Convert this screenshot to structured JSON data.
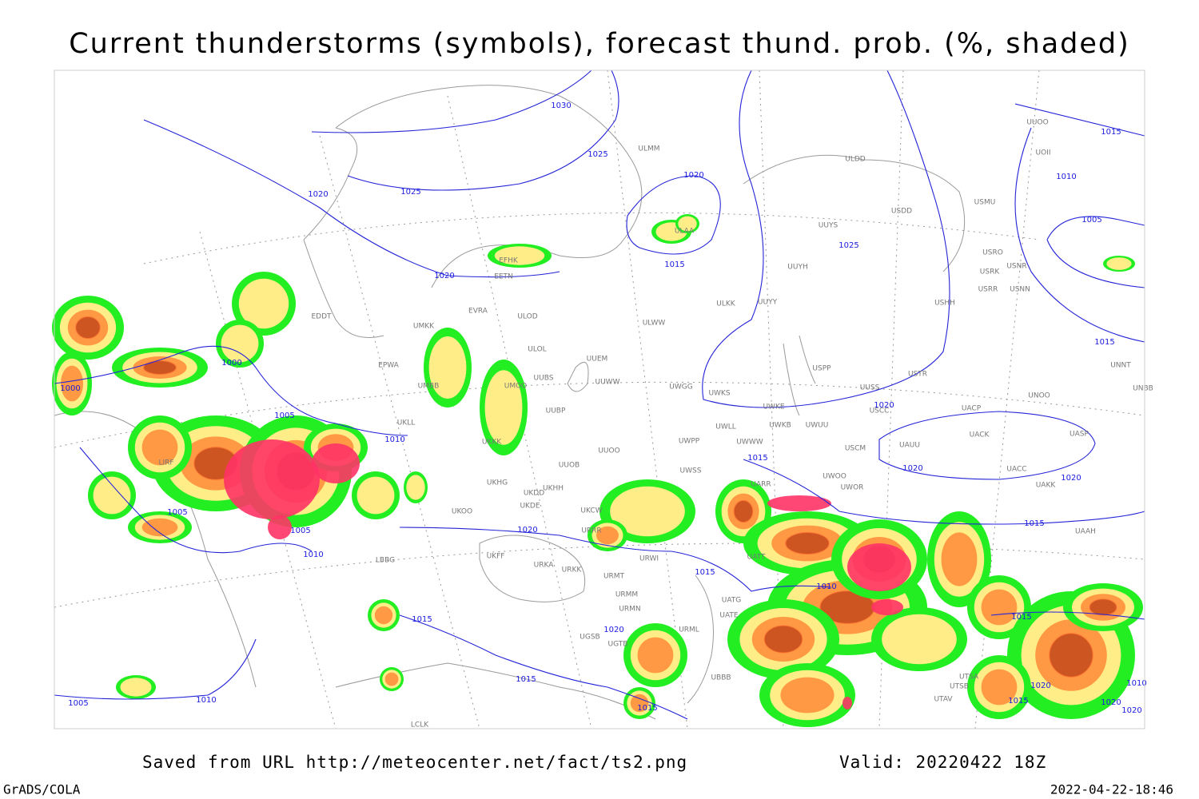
{
  "header": {
    "title": "Current thunderstorms (symbols), forecast thund. prob. (%, shaded)"
  },
  "map": {
    "stations": [
      "EFHK",
      "EETN",
      "EVRA",
      "ULOD",
      "EDDT",
      "UMKK",
      "ULOL",
      "EPWA",
      "UMOO",
      "UUBS",
      "UMBB",
      "UUBP",
      "UKLL",
      "UKKK",
      "UUOB",
      "UKHG",
      "UKDD",
      "UKHH",
      "UKOO",
      "UKDE",
      "UKCW",
      "URRR",
      "UKFF",
      "URKA",
      "URKK",
      "LBBG",
      "URMT",
      "URMM",
      "URMN",
      "UGSB",
      "UGTB",
      "UBBB",
      "URWI",
      "UUEM",
      "UUWW",
      "ULWW",
      "ULKK",
      "ULAA",
      "ULMM",
      "UUYY",
      "UUYH",
      "UUYS",
      "ULDD",
      "USDD",
      "USMU",
      "UUOO",
      "UOII",
      "USRO",
      "USRK",
      "USNR",
      "USRR",
      "USNN",
      "USHH",
      "UNNT",
      "UNBB",
      "UNOO",
      "USTR",
      "UUSS",
      "USPP",
      "UWKS",
      "UWKE",
      "UWKB",
      "UWUU",
      "USCC",
      "UACP",
      "UACK",
      "UASP",
      "UAUU",
      "USCM",
      "UWPP",
      "UWWW",
      "UWLL",
      "UWGG",
      "UUOO",
      "UWSS",
      "UARR",
      "UWOO",
      "UWOR",
      "UACC",
      "UAKK",
      "UAAH",
      "UATT",
      "UATG",
      "UATE",
      "URML",
      "UTSA",
      "UTSB",
      "UTAV",
      "LIRF",
      "LCLK"
    ],
    "isobars": [
      1030,
      1025,
      1025,
      1020,
      1020,
      1015,
      1020,
      1015,
      1010,
      1005,
      1015,
      1025,
      1000,
      1000,
      1005,
      1010,
      1005,
      1005,
      1010,
      1020,
      1015,
      1020,
      1020,
      1020,
      1015,
      1015,
      1010,
      1015,
      1020,
      1015,
      1015,
      1010,
      1005,
      1015,
      1020,
      1015,
      1020,
      1020,
      1010
    ]
  },
  "footer": {
    "source": "Saved from URL http://meteocenter.net/fact/ts2.png",
    "valid": "Valid: 20220422 18Z",
    "software": "GrADS/COLA",
    "timestamp": "2022-04-22-18:46"
  }
}
